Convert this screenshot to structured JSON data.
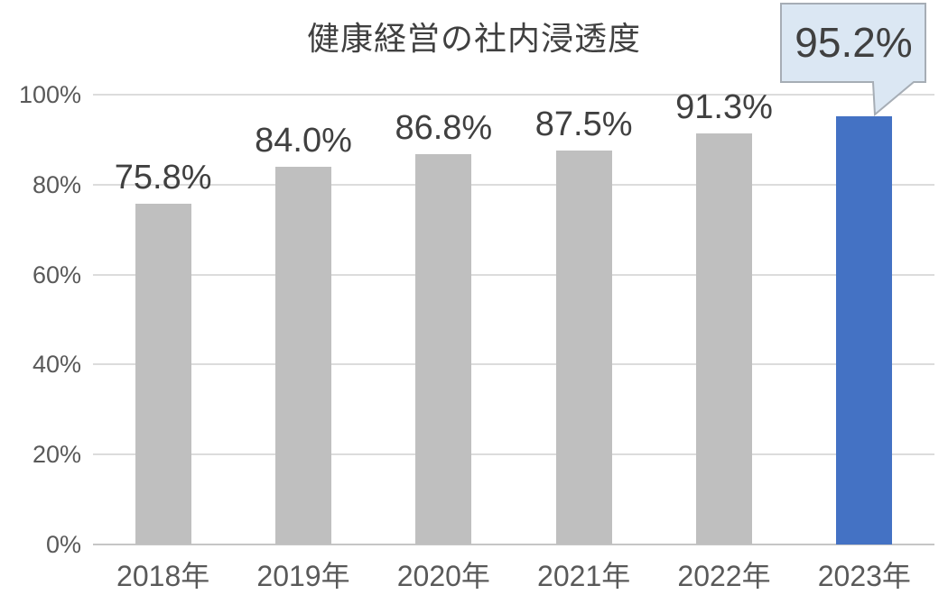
{
  "chart_data": {
    "type": "bar",
    "title": "健康経営の社内浸透度",
    "categories": [
      "2018年",
      "2019年",
      "2020年",
      "2021年",
      "2022年",
      "2023年"
    ],
    "values": [
      75.8,
      84.0,
      86.8,
      87.5,
      91.3,
      95.2
    ],
    "data_labels": [
      "75.8%",
      "84.0%",
      "86.8%",
      "87.5%",
      "91.3%",
      "95.2%"
    ],
    "xlabel": "",
    "ylabel": "",
    "ylim": [
      0,
      100
    ],
    "y_axis": {
      "ticks": [
        {
          "label": "0%",
          "value": 0
        },
        {
          "label": "20%",
          "value": 20
        },
        {
          "label": "40%",
          "value": 40
        },
        {
          "label": "60%",
          "value": 60
        },
        {
          "label": "80%",
          "value": 80
        },
        {
          "label": "100%",
          "value": 100
        }
      ]
    },
    "grid": true,
    "legend_position": "none",
    "highlight_index": 5,
    "callout": {
      "label": "95.2%",
      "target_category": "2023年"
    },
    "colors": {
      "bar_default": "#bfbfbf",
      "bar_highlight": "#4472c4",
      "gridline": "#dcdcdc",
      "axis_line": "#c6c6c6",
      "title_text": "#404040",
      "label_text": "#404040",
      "tick_text": "#595959",
      "callout_fill": "#dbe7f3",
      "callout_border": "#a6adb5",
      "callout_text": "#404040"
    }
  }
}
